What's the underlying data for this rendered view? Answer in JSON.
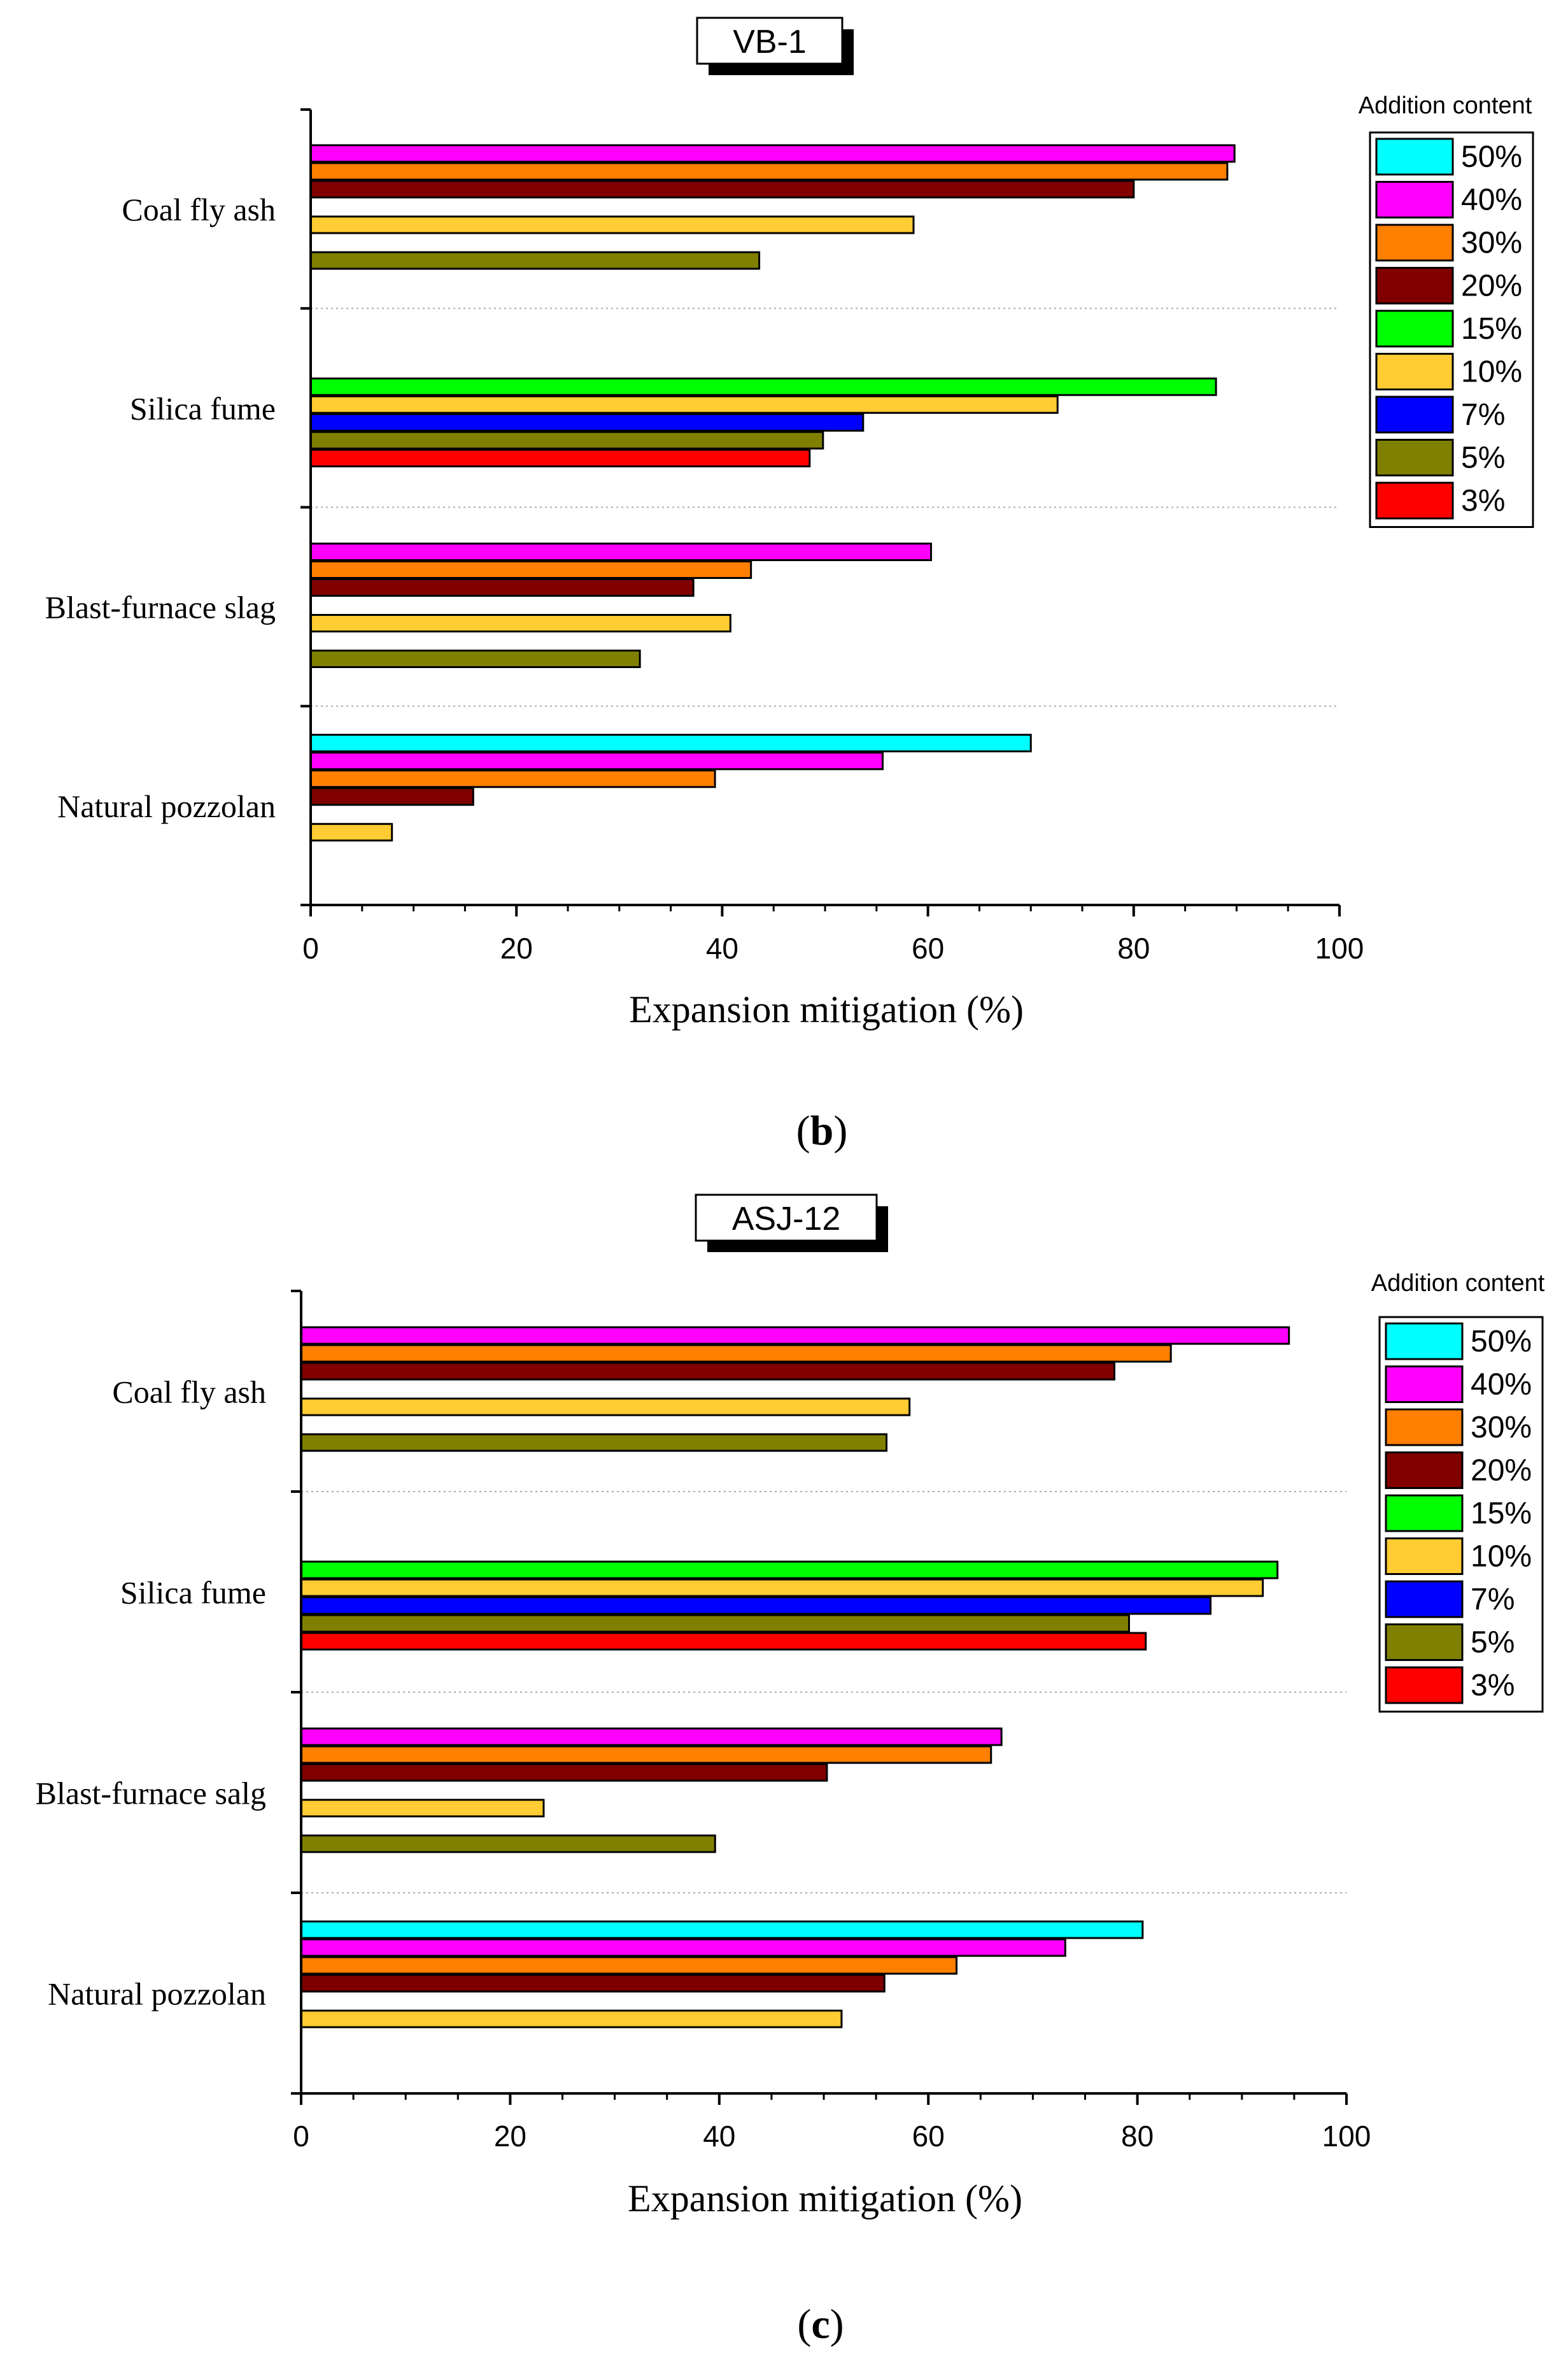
{
  "chart_data": [
    {
      "type": "bar",
      "orientation": "horizontal",
      "title": "VB-1",
      "panel_caption_letter": "b",
      "xlabel": "Expansion mitigation (%)",
      "ylabel": "",
      "xlim": [
        0,
        100
      ],
      "xticks": [
        "0",
        "20",
        "40",
        "60",
        "80",
        "100"
      ],
      "legend_title": "Addition content",
      "legend_position": "top-right",
      "categories": [
        {
          "name": "Coal fly ash",
          "bars": [
            {
              "series": "40%",
              "value": 89.8
            },
            {
              "series": "30%",
              "value": 89.1
            },
            {
              "series": "20%",
              "value": 80.0
            },
            {
              "series": "10%",
              "value": 58.6
            },
            {
              "series": "5%",
              "value": 43.6
            }
          ]
        },
        {
          "name": "Silica fume",
          "bars": [
            {
              "series": "15%",
              "value": 88.0
            },
            {
              "series": "10%",
              "value": 72.6
            },
            {
              "series": "7%",
              "value": 53.7
            },
            {
              "series": "5%",
              "value": 49.8
            },
            {
              "series": "3%",
              "value": 48.5
            }
          ]
        },
        {
          "name": "Blast-furnace slag",
          "bars": [
            {
              "series": "40%",
              "value": 60.3
            },
            {
              "series": "30%",
              "value": 42.8
            },
            {
              "series": "20%",
              "value": 37.2
            },
            {
              "series": "10%",
              "value": 40.8
            },
            {
              "series": "5%",
              "value": 32.0
            }
          ]
        },
        {
          "name": "Natural pozzolan",
          "bars": [
            {
              "series": "50%",
              "value": 70.0
            },
            {
              "series": "40%",
              "value": 55.6
            },
            {
              "series": "30%",
              "value": 39.3
            },
            {
              "series": "20%",
              "value": 15.8
            },
            {
              "series": "10%",
              "value": 7.9
            }
          ]
        }
      ]
    },
    {
      "type": "bar",
      "orientation": "horizontal",
      "title": "ASJ-12",
      "panel_caption_letter": "c",
      "xlabel": "Expansion mitigation (%)",
      "ylabel": "",
      "xlim": [
        0,
        100
      ],
      "xticks": [
        "0",
        "20",
        "40",
        "60",
        "80",
        "100"
      ],
      "legend_title": "Addition content",
      "legend_position": "top-right",
      "categories": [
        {
          "name": "Coal fly ash",
          "bars": [
            {
              "series": "40%",
              "value": 94.5
            },
            {
              "series": "30%",
              "value": 83.2
            },
            {
              "series": "20%",
              "value": 77.8
            },
            {
              "series": "10%",
              "value": 58.2
            },
            {
              "series": "5%",
              "value": 56.0
            }
          ]
        },
        {
          "name": "Silica fume",
          "bars": [
            {
              "series": "15%",
              "value": 93.4
            },
            {
              "series": "10%",
              "value": 92.0
            },
            {
              "series": "7%",
              "value": 87.0
            },
            {
              "series": "5%",
              "value": 79.2
            },
            {
              "series": "3%",
              "value": 80.8
            }
          ]
        },
        {
          "name": "Blast-furnace salg",
          "bars": [
            {
              "series": "40%",
              "value": 67.0
            },
            {
              "series": "30%",
              "value": 66.0
            },
            {
              "series": "20%",
              "value": 50.3
            },
            {
              "series": "10%",
              "value": 23.2
            },
            {
              "series": "5%",
              "value": 39.6
            }
          ]
        },
        {
          "name": "Natural pozzolan",
          "bars": [
            {
              "series": "50%",
              "value": 80.5
            },
            {
              "series": "40%",
              "value": 73.1
            },
            {
              "series": "30%",
              "value": 62.7
            },
            {
              "series": "20%",
              "value": 55.8
            },
            {
              "series": "10%",
              "value": 51.7
            }
          ]
        }
      ]
    }
  ],
  "series_colors": {
    "50%": "#00FFFF",
    "40%": "#FF00FF",
    "30%": "#FF7F00",
    "20%": "#800000",
    "15%": "#00FF00",
    "10%": "#FFCC33",
    "7%": "#0000FF",
    "5%": "#808000",
    "3%": "#FF0000"
  },
  "legend_order": [
    "50%",
    "40%",
    "30%",
    "20%",
    "15%",
    "10%",
    "7%",
    "5%",
    "3%"
  ]
}
